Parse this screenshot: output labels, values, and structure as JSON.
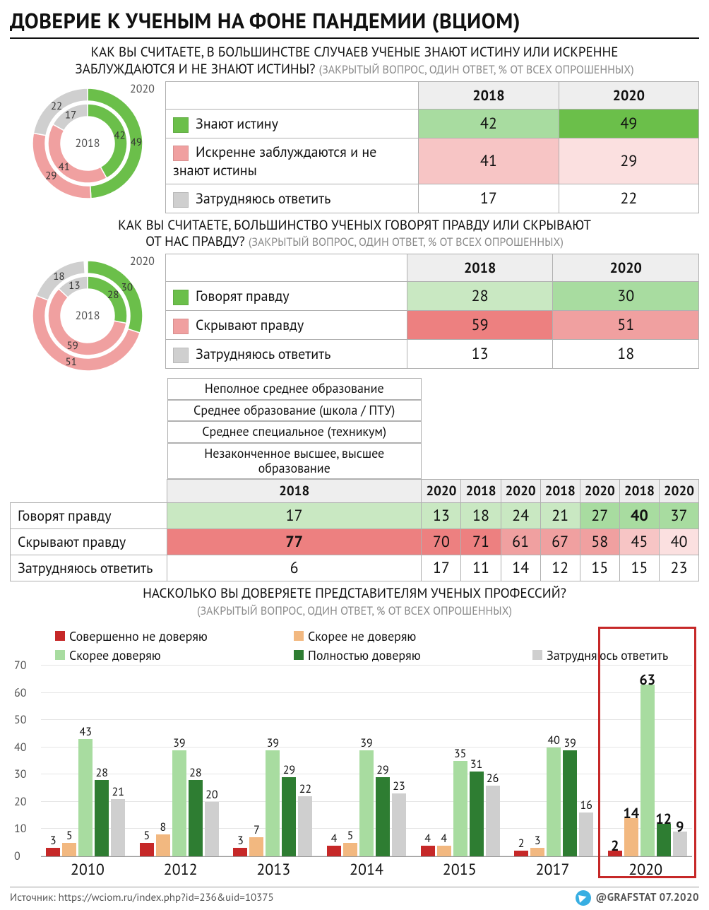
{
  "colors": {
    "green": "#6bbf4a",
    "green_light": "#a8dca0",
    "green_lighter": "#c9e8c2",
    "green_dark": "#2e7d32",
    "pink": "#f0a0a0",
    "pink_strong": "#ed8080",
    "pink_light": "#f7c5c5",
    "pink_lighter": "#fbe0e0",
    "grey": "#cfcfcf",
    "grey_light": "#e9e9e9",
    "red": "#c62828",
    "orange": "#f2b880",
    "bar_grey": "#cfcfcf",
    "axis": "#999999",
    "header_bg": "#eeeeee"
  },
  "title": "ДОВЕРИЕ К УЧЕНЫМ НА ФОНЕ ПАНДЕМИИ (ВЦИОМ)",
  "q1": {
    "text_a": "КАК ВЫ СЧИТАЕТЕ, В БОЛЬШИНСТВЕ СЛУЧАЕВ УЧЕНЫЕ ЗНАЮТ ИСТИНУ ИЛИ ИСКРЕННЕ",
    "text_b": "ЗАБЛУЖДАЮТСЯ И НЕ ЗНАЮТ ИСТИНЫ?",
    "hint": "(ЗАКРЫТЫЙ ВОПРОС, ОДИН ОТВЕТ, % ОТ ВСЕХ ОПРОШЕННЫХ)",
    "years": [
      "2018",
      "2020"
    ],
    "rows": [
      {
        "label": "Знают истину",
        "swatch": "green",
        "vals": [
          42,
          49
        ],
        "cell_colors": [
          "green_light",
          "green"
        ]
      },
      {
        "label": "Искренне заблуждаются и не знают истины",
        "swatch": "pink",
        "vals": [
          41,
          29
        ],
        "cell_colors": [
          "pink_light",
          "pink_lighter"
        ]
      },
      {
        "label": "Затрудняюсь ответить",
        "swatch": "grey",
        "vals": [
          17,
          22
        ],
        "cell_colors": [
          "",
          ""
        ]
      }
    ],
    "donut": {
      "year_inner": "2018",
      "year_outer": "2020",
      "inner": [
        {
          "v": 42,
          "c": "green"
        },
        {
          "v": 41,
          "c": "pink"
        },
        {
          "v": 17,
          "c": "grey"
        }
      ],
      "outer": [
        {
          "v": 49,
          "c": "green"
        },
        {
          "v": 29,
          "c": "pink"
        },
        {
          "v": 22,
          "c": "grey"
        }
      ]
    }
  },
  "q2": {
    "text_a": "КАК ВЫ СЧИТАЕТЕ, БОЛЬШИНСТВО УЧЕНЫХ ГОВОРЯТ ПРАВДУ ИЛИ СКРЫВАЮТ",
    "text_b": "ОТ НАС ПРАВДУ?",
    "hint": "(ЗАКРЫТЫЙ ВОПРОС, ОДИН ОТВЕТ, % ОТ ВСЕХ ОПРОШЕННЫХ)",
    "years": [
      "2018",
      "2020"
    ],
    "rows": [
      {
        "label": "Говорят правду",
        "swatch": "green",
        "vals": [
          28,
          30
        ],
        "cell_colors": [
          "green_lighter",
          "green_light"
        ]
      },
      {
        "label": "Скрывают правду",
        "swatch": "pink",
        "vals": [
          59,
          51
        ],
        "cell_colors": [
          "pink_strong",
          "pink"
        ]
      },
      {
        "label": "Затрудняюсь ответить",
        "swatch": "grey",
        "vals": [
          13,
          18
        ],
        "cell_colors": [
          "",
          ""
        ]
      }
    ],
    "donut": {
      "year_inner": "2018",
      "year_outer": "2020",
      "inner": [
        {
          "v": 28,
          "c": "green"
        },
        {
          "v": 59,
          "c": "pink"
        },
        {
          "v": 13,
          "c": "grey"
        }
      ],
      "outer": [
        {
          "v": 30,
          "c": "green"
        },
        {
          "v": 51,
          "c": "pink"
        },
        {
          "v": 18,
          "c": "grey"
        }
      ]
    }
  },
  "edu": {
    "groups": [
      "Неполное среднее образование",
      "Среднее образование (школа / ПТУ)",
      "Среднее специальное (техникум)",
      "Незаконченное высшее, высшее образование"
    ],
    "years": [
      "2018",
      "2020",
      "2018",
      "2020",
      "2018",
      "2020",
      "2018",
      "2020"
    ],
    "rows": [
      {
        "label": "Говорят правду",
        "vals": [
          17,
          13,
          18,
          24,
          21,
          27,
          40,
          37
        ],
        "colors": [
          "green_lighter",
          "green_lighter",
          "green_lighter",
          "green_lighter",
          "green_lighter",
          "green_light",
          "green_light",
          "green_light"
        ],
        "bold": [
          0,
          0,
          0,
          0,
          0,
          0,
          1,
          0
        ]
      },
      {
        "label": "Скрывают правду",
        "vals": [
          77,
          70,
          71,
          61,
          67,
          58,
          45,
          40
        ],
        "colors": [
          "pink_strong",
          "pink_strong",
          "pink_strong",
          "pink",
          "pink",
          "pink",
          "pink_light",
          "pink_lighter"
        ],
        "bold": [
          1,
          0,
          0,
          0,
          0,
          0,
          0,
          0
        ]
      },
      {
        "label": "Затрудняюсь ответить",
        "vals": [
          6,
          17,
          11,
          14,
          12,
          15,
          15,
          23
        ],
        "colors": [
          "",
          "",
          "",
          "",
          "",
          "",
          "",
          ""
        ],
        "bold": [
          0,
          0,
          0,
          0,
          0,
          0,
          0,
          0
        ]
      }
    ]
  },
  "q3": {
    "text": "НАСКОЛЬКО ВЫ ДОВЕРЯЕТЕ ПРЕДСТАВИТЕЛЯМ УЧЕНЫХ ПРОФЕССИЙ?",
    "hint": "(ЗАКРЫТЫЙ ВОПРОС, ОДИН ОТВЕТ, % ОТ ВСЕХ ОПРОШЕННЫХ)"
  },
  "bar": {
    "ymax": 70,
    "ytick_step": 10,
    "series": [
      {
        "label": "Совершенно не доверяю",
        "color": "red"
      },
      {
        "label": "Скорee не доверяю",
        "color": "orange"
      },
      {
        "label": "Скорее доверяю",
        "color": "green_light"
      },
      {
        "label": "Полностью доверяю",
        "color": "green_dark"
      },
      {
        "label": "Затрудняюсь ответить",
        "color": "bar_grey"
      }
    ],
    "legend_labels": {
      "s0": "Совершенно не доверяю",
      "s1": "Скорее не доверяю",
      "s2": "Скорее доверяю",
      "s3": "Полностью доверяю",
      "s4": "Затрудняюсь ответить"
    },
    "years": [
      "2010",
      "2012",
      "2013",
      "2014",
      "2015",
      "2017",
      "2020"
    ],
    "data": [
      [
        3,
        5,
        43,
        28,
        21
      ],
      [
        5,
        8,
        39,
        28,
        20
      ],
      [
        3,
        7,
        39,
        29,
        22
      ],
      [
        4,
        5,
        39,
        29,
        23
      ],
      [
        4,
        4,
        35,
        31,
        26
      ],
      [
        2,
        3,
        40,
        39,
        16
      ],
      [
        2,
        14,
        63,
        12,
        9
      ]
    ],
    "highlight_index": 6
  },
  "footer": {
    "source": "Источник: https://wciom.ru/index.php?id=236&uid=10375",
    "credit": "@GRAFSTAT 07.2020"
  }
}
